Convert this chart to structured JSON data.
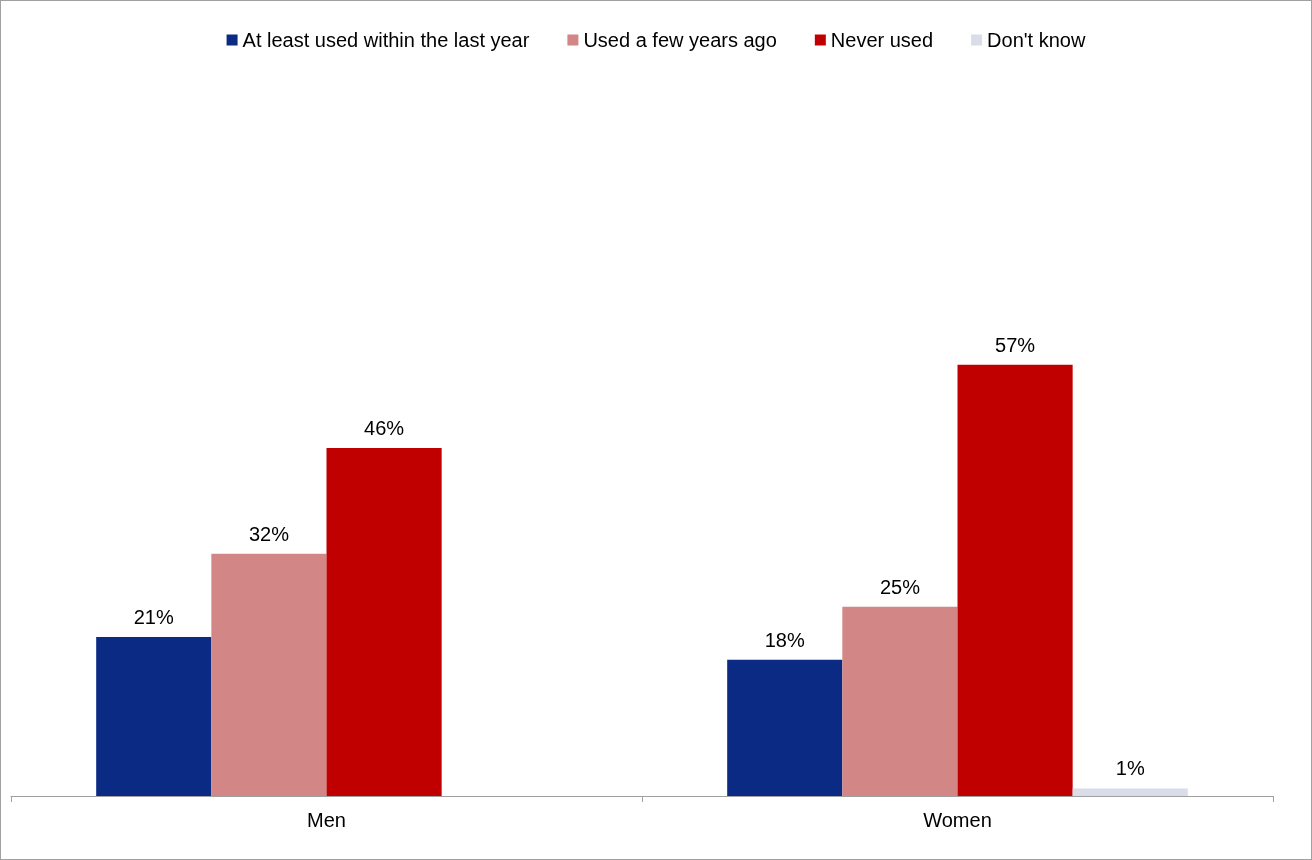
{
  "chart_data": {
    "type": "bar",
    "categories": [
      "Men",
      "Women"
    ],
    "series": [
      {
        "name": "At least used within the last year",
        "color": "#0a2a84",
        "values": [
          21,
          18
        ],
        "value_labels": [
          "21%",
          "18%"
        ]
      },
      {
        "name": "Used a few years ago",
        "color": "#d38686",
        "values": [
          32,
          25
        ],
        "value_labels": [
          "32%",
          "25%"
        ]
      },
      {
        "name": "Never used",
        "color": "#c00000",
        "values": [
          46,
          57
        ],
        "value_labels": [
          "46%",
          "57%"
        ]
      },
      {
        "name": "Don't know",
        "color": "#d9dde8",
        "values": [
          null,
          1
        ],
        "value_labels": [
          null,
          "1%"
        ]
      }
    ],
    "legend": "top"
  }
}
